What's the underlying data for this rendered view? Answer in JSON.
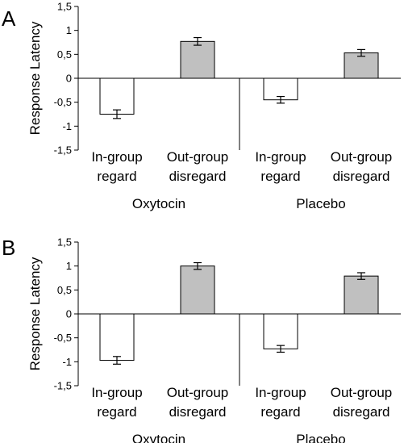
{
  "chart_data": [
    {
      "type": "bar",
      "panel": "A",
      "ylabel": "Response Latency",
      "ylim": [
        -1.5,
        1.5
      ],
      "yticks": [
        "1,5",
        "1",
        "0,5",
        "0",
        "-0,5",
        "-1",
        "-1,5"
      ],
      "groups": [
        "Oxytocin",
        "Placebo"
      ],
      "categories": [
        {
          "line1": "In-group",
          "line2": "regard"
        },
        {
          "line1": "Out-group",
          "line2": "disregard"
        },
        {
          "line1": "In-group",
          "line2": "regard"
        },
        {
          "line1": "Out-group",
          "line2": "disregard"
        }
      ],
      "values": [
        -0.75,
        0.77,
        -0.45,
        0.53
      ],
      "errors": [
        0.09,
        0.08,
        0.07,
        0.07
      ],
      "fills": [
        "#ffffff",
        "#c0c0c0",
        "#ffffff",
        "#c0c0c0"
      ]
    },
    {
      "type": "bar",
      "panel": "B",
      "ylabel": "Response Latency",
      "ylim": [
        -1.5,
        1.5
      ],
      "yticks": [
        "1,5",
        "1",
        "0,5",
        "0",
        "-0,5",
        "-1",
        "-1,5"
      ],
      "groups": [
        "Oxytocin",
        "Placebo"
      ],
      "categories": [
        {
          "line1": "In-group",
          "line2": "regard"
        },
        {
          "line1": "Out-group",
          "line2": "disregard"
        },
        {
          "line1": "In-group",
          "line2": "regard"
        },
        {
          "line1": "Out-group",
          "line2": "disregard"
        }
      ],
      "values": [
        -0.97,
        1.0,
        -0.73,
        0.79
      ],
      "errors": [
        0.08,
        0.07,
        0.07,
        0.07
      ],
      "fills": [
        "#ffffff",
        "#c0c0c0",
        "#ffffff",
        "#c0c0c0"
      ]
    }
  ]
}
